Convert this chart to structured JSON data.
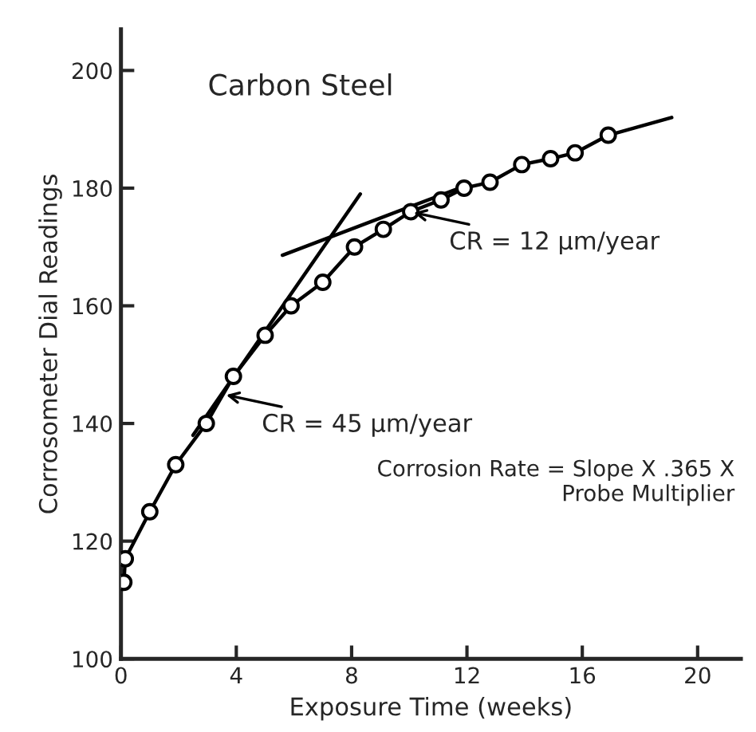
{
  "chart_data": {
    "type": "line",
    "title": "Carbon Steel",
    "xlabel": "Exposure Time (weeks)",
    "ylabel": "Corrosometer Dial Readings",
    "xlim": [
      0,
      21.5
    ],
    "ylim": [
      100,
      207
    ],
    "xticks": [
      0,
      4,
      8,
      12,
      16,
      20
    ],
    "yticks": [
      100,
      120,
      140,
      160,
      180,
      200
    ],
    "grid": false,
    "legend": false,
    "series": [
      {
        "color": "#000000",
        "marker": "none",
        "x": [
          0.1,
          0.15,
          1.0,
          1.9,
          2.96,
          3.9,
          5.0,
          5.9,
          7.0,
          8.1,
          9.1,
          10.05,
          11.1,
          11.9,
          12.8,
          13.9,
          14.9,
          15.75,
          16.9,
          19.1
        ],
        "values": [
          113,
          117,
          125,
          133,
          140,
          148,
          155,
          160,
          164,
          170,
          173,
          176,
          178,
          180,
          181,
          184,
          185,
          186,
          189,
          192
        ]
      },
      {
        "type": "scatter",
        "color": "#000000",
        "marker": "circle",
        "x": [
          0.1,
          0.15,
          1.0,
          1.9,
          2.96,
          3.9,
          5.0,
          5.9,
          7.0,
          8.1,
          9.1,
          10.05,
          11.1,
          11.9,
          12.8,
          13.9,
          14.9,
          15.75,
          16.9
        ],
        "values": [
          113,
          117,
          125,
          133,
          140,
          148,
          155,
          160,
          164,
          170,
          173,
          176,
          178,
          180,
          181,
          184,
          185,
          186,
          189
        ]
      },
      {
        "color": "#000000",
        "marker": "none",
        "x": [
          2.5,
          8.3
        ],
        "values": [
          138,
          179
        ]
      },
      {
        "color": "#000000",
        "marker": "none",
        "x": [
          5.6,
          12.0
        ],
        "values": [
          168.6,
          180.5
        ]
      }
    ],
    "annotations": [
      {
        "text": "CR = 12 µm/year",
        "x": 10.0,
        "y": 176
      },
      {
        "text": "CR = 45 µm/year",
        "x": 3.5,
        "y": 145
      },
      "Corrosion Rate = Slope X .365 X\nProbe Multiplier"
    ]
  }
}
